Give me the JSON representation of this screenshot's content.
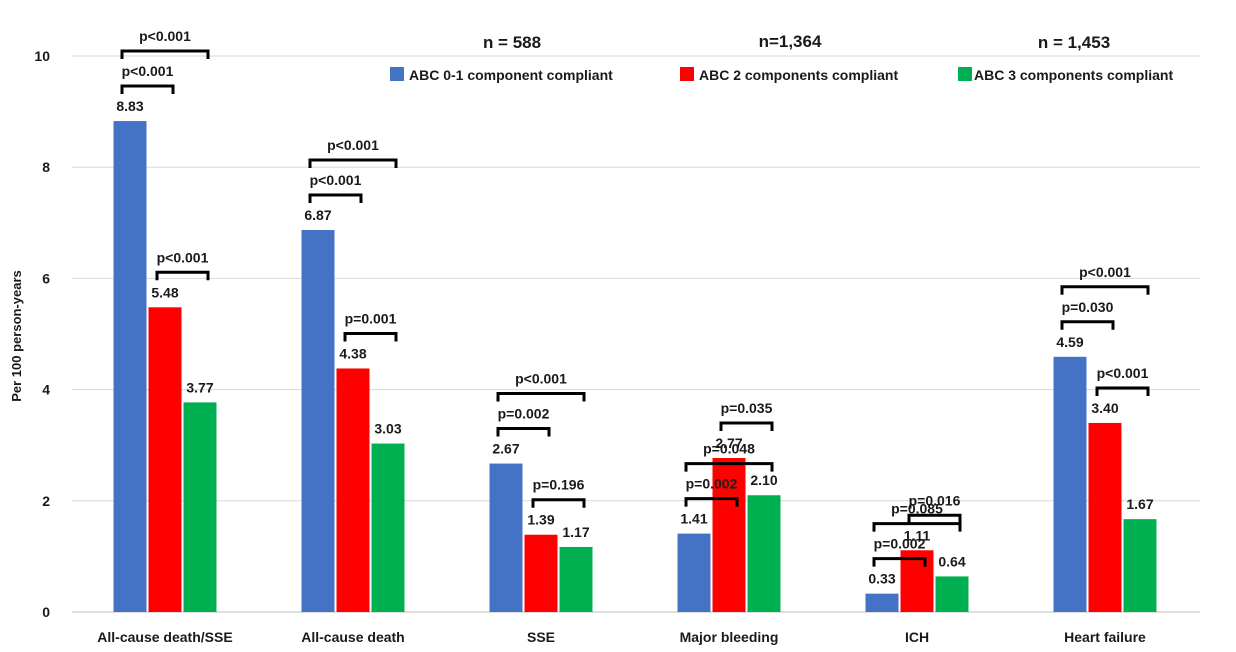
{
  "chart_data": {
    "type": "bar",
    "title": "",
    "xlabel": "",
    "ylabel": "Per 100 person-years",
    "ylim": [
      0,
      10
    ],
    "yticks": [
      "0",
      "2",
      "4",
      "6",
      "8",
      "10"
    ],
    "grid": true,
    "legend_position": "top-right",
    "categories": [
      "All-cause death/SSE",
      "All-cause death",
      "SSE",
      "Major bleeding",
      "ICH",
      "Heart failure"
    ],
    "series": [
      {
        "name": "ABC 0-1 component compliant",
        "color": "#4472C4",
        "values": [
          8.83,
          6.87,
          2.67,
          1.41,
          0.33,
          4.59
        ],
        "labels": [
          "8.83",
          "6.87",
          "2.67",
          "1.41",
          "0.33",
          "4.59"
        ]
      },
      {
        "name": "ABC 2 components compliant",
        "color": "#FF0000",
        "values": [
          5.48,
          4.38,
          1.39,
          2.77,
          1.11,
          3.4
        ],
        "labels": [
          "5.48",
          "4.38",
          "1.39",
          "2.77",
          "1.11",
          "3.40"
        ]
      },
      {
        "name": "ABC 3 components compliant",
        "color": "#00B050",
        "values": [
          3.77,
          3.03,
          1.17,
          2.1,
          0.64,
          1.67
        ],
        "labels": [
          "3.77",
          "3.03",
          "1.17",
          "2.10",
          "0.64",
          "1.67"
        ]
      }
    ],
    "sample_sizes": [
      "n = 588",
      "n=1,364",
      "n = 1,453"
    ],
    "comparisons": [
      {
        "category": 0,
        "pairs": [
          {
            "between": [
              0,
              2
            ],
            "text": "p<0.001"
          },
          {
            "between": [
              0,
              1
            ],
            "text": "p<0.001"
          },
          {
            "between": [
              1,
              2
            ],
            "text": "p<0.001"
          }
        ]
      },
      {
        "category": 1,
        "pairs": [
          {
            "between": [
              0,
              2
            ],
            "text": "p<0.001"
          },
          {
            "between": [
              0,
              1
            ],
            "text": "p<0.001"
          },
          {
            "between": [
              1,
              2
            ],
            "text": "p=0.001"
          }
        ]
      },
      {
        "category": 2,
        "pairs": [
          {
            "between": [
              0,
              2
            ],
            "text": "p<0.001"
          },
          {
            "between": [
              0,
              1
            ],
            "text": "p=0.002"
          },
          {
            "between": [
              1,
              2
            ],
            "text": "p=0.196"
          }
        ]
      },
      {
        "category": 3,
        "pairs": [
          {
            "between": [
              0,
              2
            ],
            "text": "p=0.048"
          },
          {
            "between": [
              0,
              1
            ],
            "text": "p=0.002"
          },
          {
            "between": [
              1,
              2
            ],
            "text": "p=0.035"
          }
        ]
      },
      {
        "category": 4,
        "pairs": [
          {
            "between": [
              0,
              2
            ],
            "text": "p=0.085"
          },
          {
            "between": [
              0,
              1
            ],
            "text": "p=0.002"
          },
          {
            "between": [
              1,
              2
            ],
            "text": "p=0.016"
          }
        ]
      },
      {
        "category": 5,
        "pairs": [
          {
            "between": [
              0,
              2
            ],
            "text": "p<0.001"
          },
          {
            "between": [
              0,
              1
            ],
            "text": "p=0.030"
          },
          {
            "between": [
              1,
              2
            ],
            "text": "p<0.001"
          }
        ]
      }
    ]
  }
}
